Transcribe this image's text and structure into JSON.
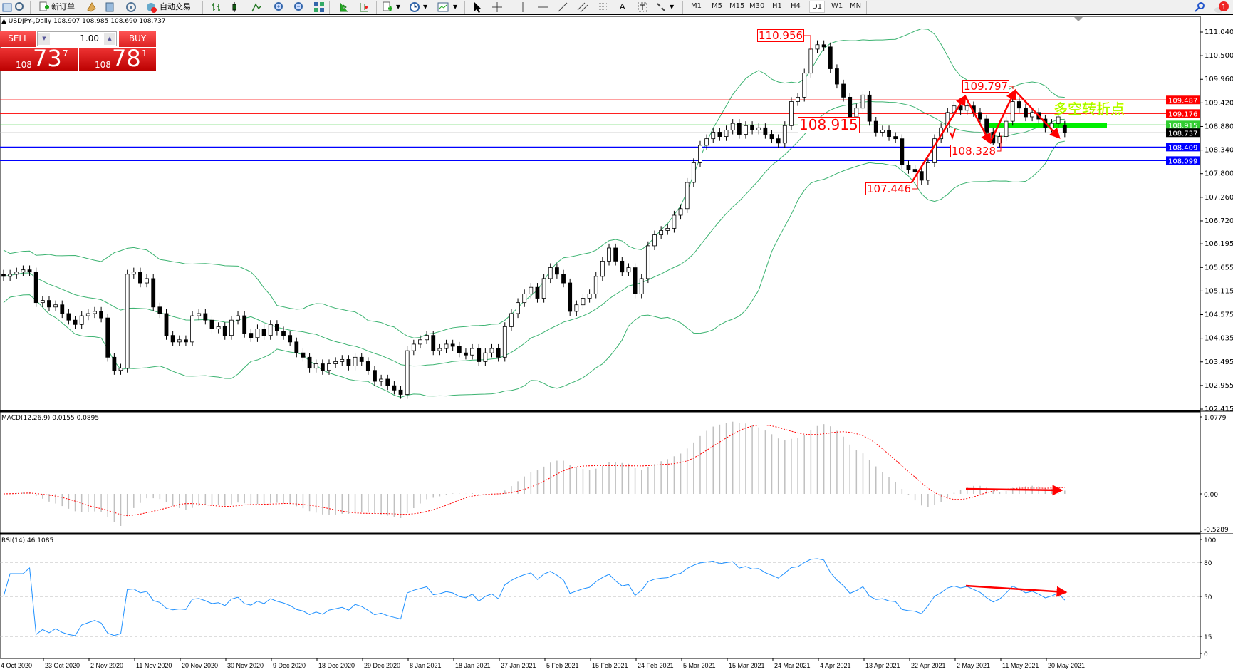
{
  "toolbar": {
    "new_order": "新订单",
    "auto_trading": "自动交易",
    "timeframes": [
      "M1",
      "M5",
      "M15",
      "M30",
      "H1",
      "H4",
      "D1",
      "W1",
      "MN"
    ],
    "active_timeframe": "D1",
    "notification_count": "1"
  },
  "chart_header": "USDJPY-,Daily  108.907 108.985 108.690 108.737",
  "trade_panel": {
    "sell_label": "SELL",
    "buy_label": "BUY",
    "lot": "1.00",
    "bid": {
      "big": "108",
      "main": "73",
      "sup": "7"
    },
    "ask": {
      "big": "108",
      "main": "78",
      "sup": "1"
    }
  },
  "annotations": {
    "high_label": "110.956",
    "level_label": "108.915",
    "peak2_label": "109.797",
    "trough2_label": "108.328",
    "low_label": "107.446",
    "pivot_text": "多空转折点"
  },
  "colors": {
    "bull": "#ffffff",
    "bear": "#000000",
    "bands": "#3cb371",
    "macd_hist": "#c0c0c0",
    "macd_signal": "#ff0000",
    "rsi": "#1e90ff",
    "annotation": "#ff0000",
    "pivot_zone": "#00ee00"
  },
  "chart_data": [
    {
      "type": "candlestick",
      "symbol": "USDJPY-",
      "timeframe": "Daily",
      "ohlc_last": {
        "open": 108.907,
        "high": 108.985,
        "low": 108.69,
        "close": 108.737
      },
      "ylim": [
        102.415,
        111.04
      ],
      "y_ticks": [
        "111.040",
        "110.500",
        "109.960",
        "109.420",
        "108.880",
        "108.340",
        "107.800",
        "107.260",
        "106.720",
        "106.195",
        "105.655",
        "105.115",
        "104.575",
        "104.035",
        "103.495",
        "102.955",
        "102.415"
      ],
      "x_ticks": [
        "4 Oct 2020",
        "23 Oct 2020",
        "2 Nov 2020",
        "11 Nov 2020",
        "20 Nov 2020",
        "30 Nov 2020",
        "9 Dec 2020",
        "18 Dec 2020",
        "29 Dec 2020",
        "8 Jan 2021",
        "18 Jan 2021",
        "27 Jan 2021",
        "5 Feb 2021",
        "15 Feb 2021",
        "24 Feb 2021",
        "5 Mar 2021",
        "15 Mar 2021",
        "24 Mar 2021",
        "4 Apr 2021",
        "13 Apr 2021",
        "22 Apr 2021",
        "2 May 2021",
        "11 May 2021",
        "20 May 2021"
      ],
      "overlay": "Bollinger Bands",
      "close": [
        105.45,
        105.5,
        105.55,
        105.6,
        105.55,
        104.85,
        104.9,
        104.75,
        104.8,
        104.6,
        104.45,
        104.35,
        104.55,
        104.6,
        104.65,
        104.5,
        103.6,
        103.3,
        103.35,
        105.5,
        105.55,
        105.3,
        105.4,
        104.75,
        104.6,
        104.1,
        103.95,
        104.0,
        103.95,
        104.55,
        104.6,
        104.45,
        104.25,
        104.3,
        104.1,
        104.45,
        104.55,
        104.15,
        104.05,
        104.25,
        104.1,
        104.35,
        104.2,
        104.1,
        103.95,
        103.7,
        103.6,
        103.35,
        103.45,
        103.3,
        103.45,
        103.5,
        103.55,
        103.4,
        103.6,
        103.5,
        103.3,
        103.05,
        103.1,
        102.95,
        102.85,
        102.75,
        103.75,
        103.9,
        104.0,
        104.1,
        103.75,
        103.8,
        103.9,
        103.85,
        103.7,
        103.65,
        103.8,
        103.5,
        103.7,
        103.8,
        103.6,
        104.3,
        104.6,
        104.85,
        105.05,
        105.2,
        104.95,
        105.4,
        105.65,
        105.5,
        105.3,
        104.65,
        104.8,
        104.95,
        105.05,
        105.45,
        105.8,
        106.1,
        105.8,
        105.55,
        105.65,
        105.05,
        105.4,
        106.15,
        106.4,
        106.5,
        106.55,
        106.85,
        107.0,
        107.6,
        108.05,
        108.45,
        108.6,
        108.75,
        108.65,
        108.8,
        108.95,
        108.7,
        108.9,
        108.8,
        108.85,
        108.7,
        108.6,
        108.5,
        108.9,
        109.45,
        109.55,
        110.1,
        110.65,
        110.75,
        110.7,
        110.2,
        109.85,
        109.55,
        109.1,
        109.3,
        109.6,
        109.0,
        108.75,
        108.8,
        108.65,
        108.6,
        108.0,
        107.9,
        107.85,
        107.65,
        108.05,
        108.6,
        108.85,
        109.2,
        109.35,
        109.25,
        109.35,
        109.2,
        109.05,
        108.75,
        108.5,
        108.65,
        109.0,
        109.45,
        109.3,
        109.1,
        109.2,
        109.05,
        108.85,
        108.95,
        109.1,
        108.737
      ],
      "horizontal_lines": [
        {
          "value": "109.487",
          "color": "#ff0000"
        },
        {
          "value": "109.176",
          "color": "#ff0000"
        },
        {
          "value": "108.915",
          "color": "#32cd32"
        },
        {
          "value": "108.737",
          "color": "#c0c0c0",
          "current": true
        },
        {
          "value": "108.409",
          "color": "#0000ff"
        },
        {
          "value": "108.099",
          "color": "#0000ff"
        }
      ]
    },
    {
      "type": "histogram+line",
      "label": "MACD(12,26,9) 0.0155 0.0895",
      "ylim": [
        -0.5289,
        1.0779
      ],
      "y_ticks": [
        "1.0779",
        "0.00",
        "-0.5289"
      ]
    },
    {
      "type": "line",
      "label": "RSI(14) 46.1085",
      "ylim": [
        0,
        100
      ],
      "y_ticks": [
        "100",
        "80",
        "50",
        "15",
        "0"
      ],
      "levels": [
        80,
        50,
        15
      ]
    }
  ]
}
